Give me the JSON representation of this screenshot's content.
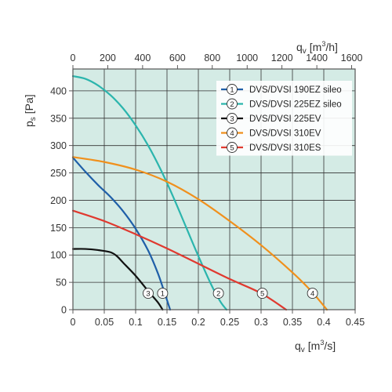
{
  "chart_data": {
    "type": "line",
    "plot_background": "#d4ebe5",
    "grid": true,
    "legend_position": "top-right",
    "x_axis": {
      "label_main": "q",
      "label_sub": "v",
      "label_unit_open": "[m",
      "label_unit_sup": "3",
      "label_unit_close": "/s]",
      "range": [
        0,
        0.45
      ],
      "ticks": [
        0,
        0.05,
        0.1,
        0.15,
        0.2,
        0.25,
        0.3,
        0.35,
        0.4,
        0.45
      ],
      "tick_labels": [
        "0",
        "0.05",
        "0.1",
        "0.15",
        "0.2",
        "0.25",
        "0.3",
        "0.35",
        "0.4",
        "0.45"
      ]
    },
    "x2_axis": {
      "label_main": "q",
      "label_sub": "v",
      "label_unit_open": "[m",
      "label_unit_sup": "3",
      "label_unit_close": "/h]",
      "range": [
        0,
        1620
      ],
      "ticks": [
        0,
        200,
        400,
        600,
        800,
        1000,
        1200,
        1400,
        1600
      ],
      "tick_labels": [
        "0",
        "200",
        "400",
        "600",
        "800",
        "1000",
        "1200",
        "1400",
        "1600"
      ]
    },
    "y_axis": {
      "label_main": "p",
      "label_sub": "s",
      "label_unit": "[Pa]",
      "range": [
        0,
        440
      ],
      "ticks": [
        0,
        50,
        100,
        150,
        200,
        250,
        300,
        350,
        400
      ],
      "tick_labels": [
        "0",
        "50",
        "100",
        "150",
        "200",
        "250",
        "300",
        "350",
        "400"
      ]
    },
    "series": [
      {
        "marker": "1",
        "name": "DVS/DVSI 190EZ sileo",
        "color": "#1f5fa8",
        "marker_at": [
          0.143,
          30
        ],
        "points": [
          [
            0,
            278
          ],
          [
            0.02,
            252
          ],
          [
            0.04,
            228
          ],
          [
            0.06,
            206
          ],
          [
            0.08,
            180
          ],
          [
            0.1,
            148
          ],
          [
            0.12,
            108
          ],
          [
            0.135,
            68
          ],
          [
            0.145,
            35
          ],
          [
            0.155,
            0
          ]
        ]
      },
      {
        "marker": "2",
        "name": "DVS/DVSI 225EZ sileo",
        "color": "#2bb5ad",
        "marker_at": [
          0.232,
          30
        ],
        "points": [
          [
            0,
            427
          ],
          [
            0.02,
            422
          ],
          [
            0.04,
            410
          ],
          [
            0.06,
            392
          ],
          [
            0.08,
            368
          ],
          [
            0.1,
            337
          ],
          [
            0.12,
            300
          ],
          [
            0.14,
            256
          ],
          [
            0.16,
            206
          ],
          [
            0.18,
            152
          ],
          [
            0.2,
            98
          ],
          [
            0.22,
            47
          ],
          [
            0.235,
            15
          ],
          [
            0.245,
            0
          ]
        ]
      },
      {
        "marker": "3",
        "name": "DVS/DVSI 225EV",
        "color": "#111111",
        "marker_at": [
          0.12,
          30
        ],
        "points": [
          [
            0,
            111
          ],
          [
            0.02,
            111
          ],
          [
            0.04,
            109
          ],
          [
            0.06,
            105
          ],
          [
            0.07,
            98
          ],
          [
            0.08,
            86
          ],
          [
            0.1,
            62
          ],
          [
            0.12,
            34
          ],
          [
            0.135,
            14
          ],
          [
            0.143,
            0
          ]
        ]
      },
      {
        "marker": "4",
        "name": "DVS/DVSI 310EV",
        "color": "#f0901c",
        "marker_at": [
          0.382,
          30
        ],
        "points": [
          [
            0,
            279
          ],
          [
            0.05,
            270
          ],
          [
            0.1,
            256
          ],
          [
            0.15,
            234
          ],
          [
            0.2,
            202
          ],
          [
            0.25,
            162
          ],
          [
            0.3,
            118
          ],
          [
            0.35,
            68
          ],
          [
            0.38,
            34
          ],
          [
            0.405,
            0
          ]
        ]
      },
      {
        "marker": "5",
        "name": "DVS/DVSI 310ES",
        "color": "#e0392f",
        "marker_at": [
          0.302,
          30
        ],
        "points": [
          [
            0,
            181
          ],
          [
            0.05,
            162
          ],
          [
            0.1,
            138
          ],
          [
            0.15,
            112
          ],
          [
            0.2,
            84
          ],
          [
            0.25,
            56
          ],
          [
            0.3,
            30
          ],
          [
            0.34,
            0
          ]
        ]
      }
    ]
  }
}
